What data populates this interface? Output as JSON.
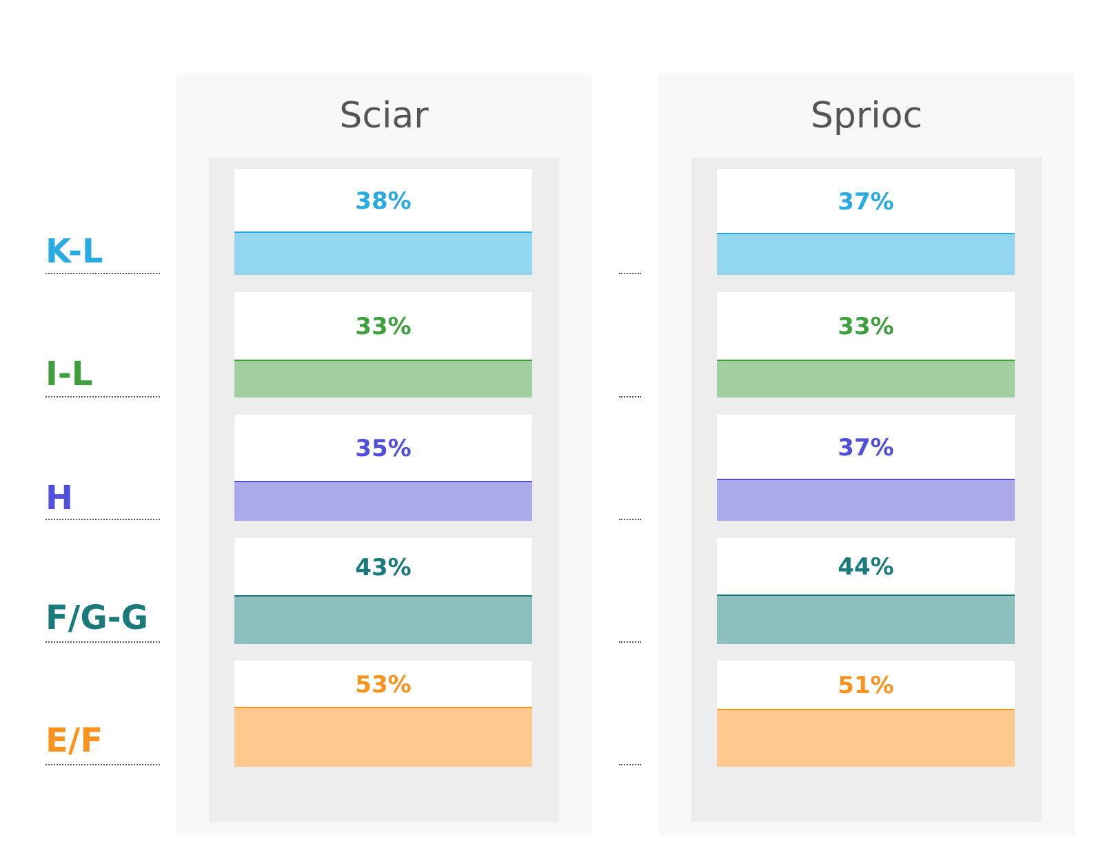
{
  "chart_data": {
    "type": "bar",
    "categories": [
      "K-L",
      "I-L",
      "H",
      "F/G-G",
      "E/F"
    ],
    "category_colors": [
      "#29abe2",
      "#3f9f3f",
      "#5050d8",
      "#1a7a7a",
      "#f7931e"
    ],
    "fill_colors": [
      "#92d6ef",
      "#a2cfa2",
      "#aaaaeb",
      "#8dbfbf",
      "#fec98f"
    ],
    "value_suffix": "%",
    "series": [
      {
        "name": "Sciar",
        "values": [
          38,
          33,
          35,
          43,
          53
        ]
      },
      {
        "name": "Sprioc",
        "values": [
          37,
          33,
          37,
          44,
          51
        ]
      }
    ]
  }
}
